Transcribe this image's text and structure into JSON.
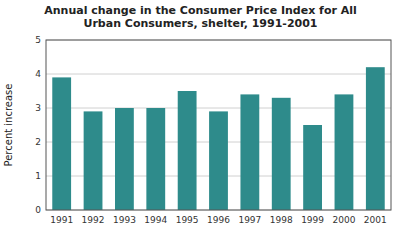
{
  "chart_data": {
    "type": "bar",
    "title": "Annual change in the Consumer Price Index for All\nUrban Consumers, shelter, 1991-2001",
    "categories": [
      "1991",
      "1992",
      "1993",
      "1994",
      "1995",
      "1996",
      "1997",
      "1998",
      "1999",
      "2000",
      "2001"
    ],
    "values": [
      3.9,
      2.9,
      3.0,
      3.0,
      3.5,
      2.9,
      3.4,
      3.3,
      2.5,
      3.4,
      4.2
    ],
    "color": "#2e8b8b",
    "ylabel": "Percent increase",
    "ylim": [
      0,
      5
    ],
    "yticks": [
      0,
      1,
      2,
      3,
      4,
      5
    ],
    "grid": true
  }
}
